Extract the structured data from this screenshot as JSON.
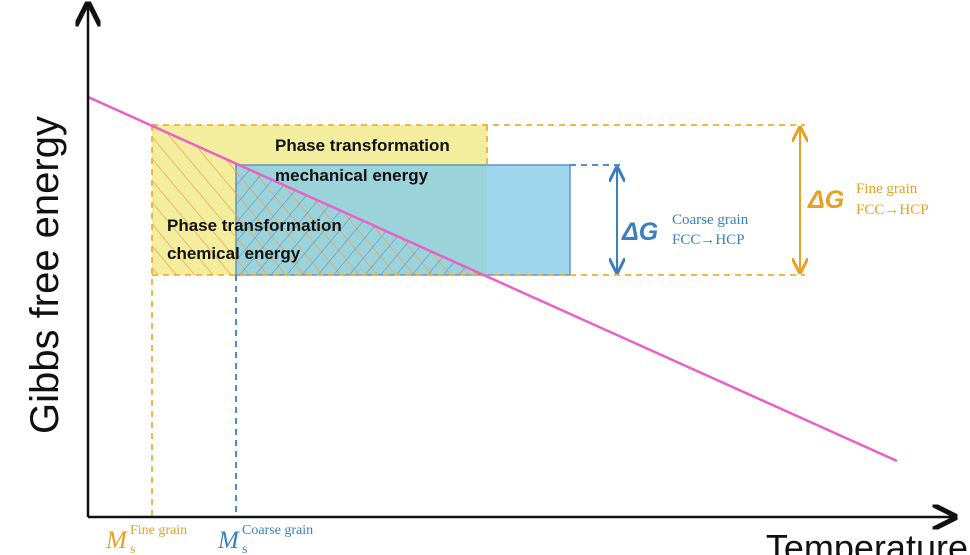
{
  "axes": {
    "y_label": "Gibbs free energy",
    "x_label": "Temperature"
  },
  "regions": {
    "mechanical": {
      "line1": "Phase transformation",
      "line2": "mechanical energy"
    },
    "chemical": {
      "line1": "Phase transformation",
      "line2": "chemical energy"
    }
  },
  "annotations": {
    "dg_coarse": {
      "symbol": "ΔG",
      "superscript": "Coarse grain",
      "subscript": "FCC→HCP"
    },
    "dg_fine": {
      "symbol": "ΔG",
      "superscript": "Fine grain",
      "subscript": "FCC→HCP"
    },
    "ms_fine": {
      "symbol": "M",
      "superscript": "Fine grain",
      "subscript": "s"
    },
    "ms_coarse": {
      "symbol": "M",
      "superscript": "Coarse grain",
      "subscript": "s"
    }
  }
}
